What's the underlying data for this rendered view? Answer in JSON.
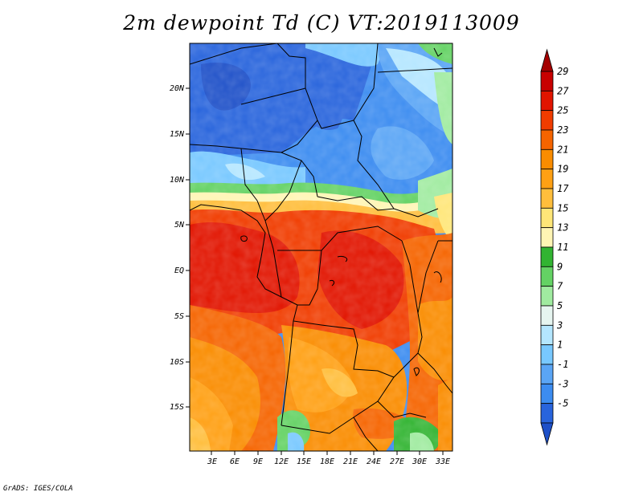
{
  "title": "2m dewpoint Td (C) VT:2019113009",
  "credit": "GrADS: IGES/COLA",
  "lat_labels": [
    "20N",
    "15N",
    "10N",
    "5N",
    "EQ",
    "5S",
    "10S",
    "15S"
  ],
  "lon_labels": [
    "3E",
    "6E",
    "9E",
    "12E",
    "15E",
    "18E",
    "21E",
    "24E",
    "27E",
    "30E",
    "33E"
  ],
  "colorbar": {
    "labels": [
      "29",
      "27",
      "25",
      "23",
      "21",
      "19",
      "17",
      "15",
      "13",
      "11",
      "9",
      "7",
      "5",
      "3",
      "1",
      "-1",
      "-3",
      "-5"
    ],
    "colors": [
      "#a50000",
      "#c80000",
      "#e11400",
      "#f03c00",
      "#f56400",
      "#fa8c00",
      "#ffa014",
      "#ffbe3c",
      "#ffe678",
      "#fff5b4",
      "#32b432",
      "#64d264",
      "#a0eba0",
      "#e6f5f0",
      "#b4e6ff",
      "#78c8ff",
      "#5aa5f5",
      "#3c8cf0",
      "#2864dc",
      "#1e50c8"
    ]
  },
  "map": {
    "region": "Central Africa",
    "lon_range": [
      0,
      34
    ],
    "lat_range": [
      -19,
      25
    ],
    "field": "2m dewpoint temperature",
    "units": "C"
  }
}
